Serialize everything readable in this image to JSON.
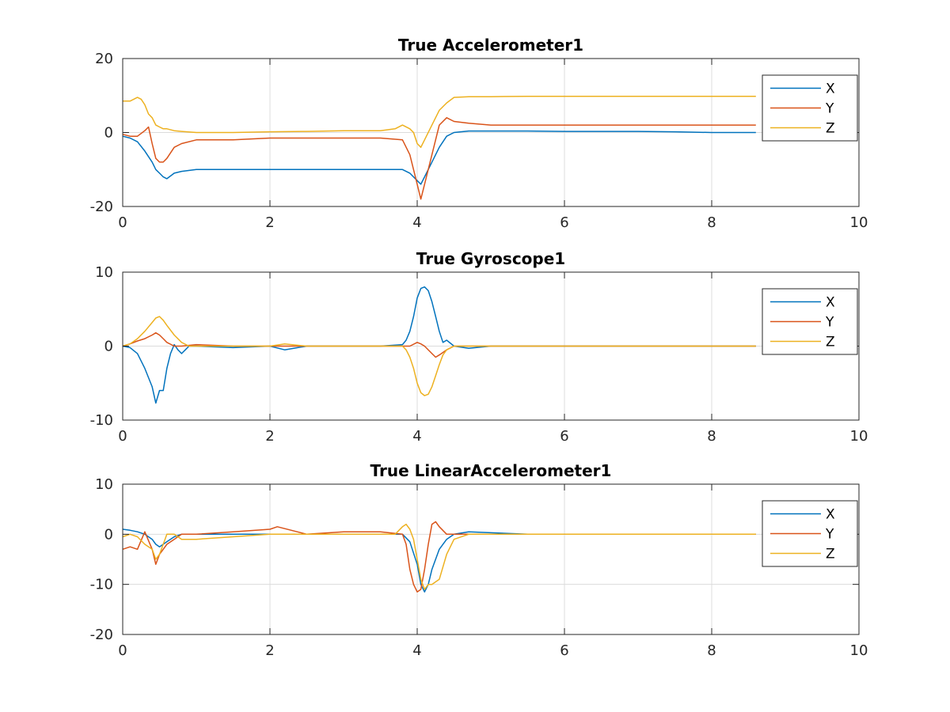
{
  "chart_data": [
    {
      "type": "line",
      "title": "True Accelerometer1",
      "xlabel": "",
      "ylabel": "",
      "xlim": [
        0,
        10
      ],
      "ylim": [
        -20,
        20
      ],
      "xticks": [
        0,
        2,
        4,
        6,
        8,
        10
      ],
      "yticks": [
        -20,
        0,
        20
      ],
      "grid": true,
      "legend": "top-right",
      "series": [
        {
          "name": "X",
          "color": "#0072BD",
          "x": [
            0,
            0.1,
            0.2,
            0.3,
            0.4,
            0.45,
            0.5,
            0.55,
            0.6,
            0.7,
            0.8,
            1.0,
            1.5,
            2.0,
            2.5,
            3.0,
            3.5,
            3.8,
            3.9,
            4.0,
            4.05,
            4.1,
            4.2,
            4.3,
            4.4,
            4.5,
            4.7,
            5.0,
            5.5,
            6.0,
            6.5,
            7.0,
            7.5,
            8.0,
            8.6
          ],
          "y": [
            -1,
            -1.5,
            -2.5,
            -5,
            -8,
            -10,
            -11,
            -12,
            -12.5,
            -11,
            -10.5,
            -10,
            -10,
            -10,
            -10,
            -10,
            -10,
            -10,
            -11,
            -13,
            -14,
            -12,
            -8,
            -4,
            -1,
            0,
            0.4,
            0.4,
            0.4,
            0.3,
            0.3,
            0.3,
            0.2,
            0,
            0
          ]
        },
        {
          "name": "Y",
          "color": "#D95319",
          "x": [
            0,
            0.1,
            0.2,
            0.3,
            0.35,
            0.4,
            0.45,
            0.5,
            0.55,
            0.6,
            0.7,
            0.8,
            1.0,
            1.5,
            2.0,
            2.5,
            3.0,
            3.5,
            3.8,
            3.9,
            4.0,
            4.05,
            4.1,
            4.2,
            4.3,
            4.4,
            4.5,
            4.7,
            5.0,
            5.5,
            6.0,
            6.5,
            7.0,
            7.5,
            8.0,
            8.6
          ],
          "y": [
            -0.5,
            -1,
            -1,
            0.5,
            1.5,
            -3,
            -7,
            -8,
            -8,
            -7,
            -4,
            -3,
            -2,
            -2,
            -1.5,
            -1.5,
            -1.5,
            -1.5,
            -2,
            -6,
            -14,
            -18,
            -14,
            -6,
            2,
            4,
            3,
            2.5,
            2,
            2,
            2,
            2,
            2,
            2,
            2,
            2
          ]
        },
        {
          "name": "Z",
          "color": "#EDB120",
          "x": [
            0,
            0.1,
            0.2,
            0.25,
            0.3,
            0.35,
            0.4,
            0.45,
            0.5,
            0.55,
            0.6,
            0.7,
            0.8,
            1.0,
            1.5,
            2.0,
            2.5,
            3.0,
            3.5,
            3.7,
            3.8,
            3.9,
            3.95,
            4.0,
            4.05,
            4.1,
            4.2,
            4.3,
            4.4,
            4.5,
            4.7,
            5.0,
            5.5,
            6.0,
            6.5,
            7.0,
            7.5,
            8.0,
            8.6
          ],
          "y": [
            8.5,
            8.5,
            9.5,
            9,
            7.5,
            5,
            4,
            2,
            1.5,
            1,
            1,
            0.5,
            0.3,
            0,
            0,
            0.2,
            0.3,
            0.5,
            0.5,
            1,
            2,
            1,
            0,
            -3,
            -4,
            -2,
            2,
            6,
            8,
            9.5,
            9.7,
            9.7,
            9.8,
            9.8,
            9.8,
            9.8,
            9.8,
            9.8,
            9.8
          ]
        }
      ]
    },
    {
      "type": "line",
      "title": "True Gyroscope1",
      "xlabel": "",
      "ylabel": "",
      "xlim": [
        0,
        10
      ],
      "ylim": [
        -10,
        10
      ],
      "xticks": [
        0,
        2,
        4,
        6,
        8,
        10
      ],
      "yticks": [
        -10,
        0,
        10
      ],
      "grid": true,
      "legend": "top-right",
      "series": [
        {
          "name": "X",
          "color": "#0072BD",
          "x": [
            0,
            0.1,
            0.2,
            0.3,
            0.4,
            0.45,
            0.5,
            0.55,
            0.6,
            0.65,
            0.7,
            0.75,
            0.8,
            0.85,
            0.9,
            1.0,
            1.5,
            2.0,
            2.2,
            2.5,
            3.0,
            3.5,
            3.8,
            3.85,
            3.9,
            3.95,
            4.0,
            4.05,
            4.1,
            4.15,
            4.2,
            4.25,
            4.3,
            4.35,
            4.4,
            4.5,
            4.7,
            5.0,
            5.5,
            6.0,
            7.0,
            8.0,
            8.6
          ],
          "y": [
            0,
            -0.2,
            -1,
            -3,
            -5.5,
            -7.7,
            -6,
            -6,
            -3,
            -1,
            0.2,
            -0.5,
            -1,
            -0.5,
            0,
            0,
            -0.2,
            0,
            -0.5,
            0,
            0,
            0,
            0.2,
            0.8,
            2,
            4,
            6.5,
            7.8,
            8,
            7.5,
            6,
            4,
            2,
            0.5,
            0.8,
            0,
            -0.3,
            0,
            0,
            0,
            0,
            0,
            0
          ]
        },
        {
          "name": "Y",
          "color": "#D95319",
          "x": [
            0,
            0.1,
            0.2,
            0.3,
            0.4,
            0.45,
            0.5,
            0.55,
            0.6,
            0.7,
            0.8,
            1.0,
            1.5,
            2.0,
            2.5,
            3.0,
            3.5,
            3.8,
            3.9,
            4.0,
            4.05,
            4.1,
            4.2,
            4.25,
            4.3,
            4.4,
            4.5,
            4.7,
            5.0,
            6.0,
            7.0,
            8.0,
            8.6
          ],
          "y": [
            0,
            0.3,
            0.7,
            1,
            1.5,
            1.8,
            1.5,
            1,
            0.5,
            0,
            0,
            0.2,
            0,
            0,
            0,
            0,
            0,
            0,
            0,
            0.5,
            0.3,
            0,
            -1,
            -1.5,
            -1.2,
            -0.5,
            0,
            0,
            0,
            0,
            0,
            0,
            0
          ]
        },
        {
          "name": "Z",
          "color": "#EDB120",
          "x": [
            0,
            0.1,
            0.2,
            0.3,
            0.4,
            0.45,
            0.5,
            0.55,
            0.6,
            0.7,
            0.8,
            0.9,
            1.0,
            1.5,
            2.0,
            2.2,
            2.5,
            3.0,
            3.5,
            3.8,
            3.85,
            3.9,
            3.95,
            4.0,
            4.05,
            4.1,
            4.15,
            4.2,
            4.25,
            4.3,
            4.35,
            4.4,
            4.5,
            4.7,
            5.0,
            6.0,
            7.0,
            8.0,
            8.6
          ],
          "y": [
            0,
            0.3,
            1,
            2,
            3.2,
            3.8,
            4,
            3.5,
            2.8,
            1.5,
            0.5,
            0,
            0,
            0,
            0,
            0.3,
            0,
            0,
            0,
            0,
            -0.5,
            -1.5,
            -3,
            -5,
            -6.3,
            -6.7,
            -6.5,
            -5.5,
            -4,
            -2.5,
            -1.2,
            -0.5,
            0,
            0,
            0,
            0,
            0,
            0,
            0
          ]
        }
      ]
    },
    {
      "type": "line",
      "title": "True LinearAccelerometer1",
      "xlabel": "",
      "ylabel": "",
      "xlim": [
        0,
        10
      ],
      "ylim": [
        -20,
        10
      ],
      "xticks": [
        0,
        2,
        4,
        6,
        8,
        10
      ],
      "yticks": [
        -20,
        -10,
        0,
        10
      ],
      "grid": true,
      "legend": "top-right",
      "series": [
        {
          "name": "X",
          "color": "#0072BD",
          "x": [
            0,
            0.1,
            0.2,
            0.3,
            0.4,
            0.45,
            0.5,
            0.55,
            0.6,
            0.7,
            0.8,
            1.0,
            1.5,
            2.0,
            2.5,
            3.0,
            3.5,
            3.8,
            3.9,
            4.0,
            4.05,
            4.1,
            4.15,
            4.2,
            4.3,
            4.4,
            4.5,
            4.7,
            5.0,
            5.5,
            6.0,
            7.0,
            8.0,
            8.6
          ],
          "y": [
            1,
            0.8,
            0.5,
            0,
            -1,
            -2,
            -2.5,
            -2,
            -1.5,
            -0.5,
            0,
            0,
            0,
            0,
            0,
            0,
            0,
            0,
            -1.5,
            -6,
            -10,
            -11.5,
            -10,
            -7,
            -3,
            -1,
            0,
            0.5,
            0.3,
            0,
            0,
            0,
            0,
            0
          ]
        },
        {
          "name": "Y",
          "color": "#D95319",
          "x": [
            0,
            0.1,
            0.2,
            0.3,
            0.4,
            0.45,
            0.5,
            0.55,
            0.6,
            0.7,
            0.8,
            1.0,
            1.5,
            2.0,
            2.1,
            2.5,
            3.0,
            3.5,
            3.8,
            3.85,
            3.9,
            3.95,
            4.0,
            4.05,
            4.1,
            4.15,
            4.2,
            4.25,
            4.3,
            4.4,
            4.5,
            4.7,
            5.0,
            6.0,
            7.0,
            8.0,
            8.6
          ],
          "y": [
            -3,
            -2.5,
            -3,
            0.5,
            -3,
            -6,
            -4,
            -3,
            -2,
            -1,
            0,
            0,
            0.5,
            1,
            1.5,
            0,
            0.5,
            0.5,
            0,
            -2,
            -7,
            -10,
            -11.5,
            -11,
            -7,
            -2,
            2,
            2.5,
            1.5,
            0,
            0,
            0,
            0,
            0,
            0,
            0,
            0
          ]
        },
        {
          "name": "Z",
          "color": "#EDB120",
          "x": [
            0,
            0.1,
            0.2,
            0.3,
            0.4,
            0.45,
            0.5,
            0.55,
            0.6,
            0.7,
            0.8,
            1.0,
            1.5,
            2.0,
            2.5,
            3.0,
            3.5,
            3.7,
            3.8,
            3.85,
            3.9,
            3.95,
            4.0,
            4.05,
            4.1,
            4.15,
            4.2,
            4.3,
            4.4,
            4.5,
            4.7,
            5.0,
            6.0,
            7.0,
            8.0,
            8.6
          ],
          "y": [
            -0.5,
            0,
            -0.5,
            -2,
            -3,
            -5,
            -4,
            -2,
            0,
            0,
            -1,
            -1,
            -0.5,
            0,
            0,
            0,
            0,
            0,
            1.5,
            2,
            1,
            -1,
            -5,
            -9,
            -11,
            -10,
            -10,
            -9,
            -4,
            -1,
            0,
            0,
            0,
            0,
            0,
            0
          ]
        }
      ]
    }
  ]
}
